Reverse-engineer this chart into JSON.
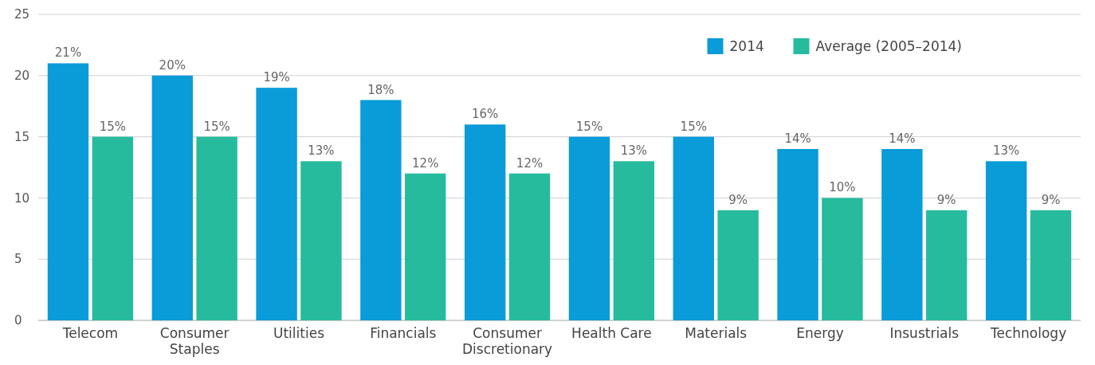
{
  "chart_data": {
    "type": "bar",
    "categories": [
      "Telecom",
      "Consumer Staples",
      "Utilities",
      "Financials",
      "Consumer Discretionary",
      "Health Care",
      "Materials",
      "Energy",
      "Insustrials",
      "Technology"
    ],
    "series": [
      {
        "name": "2014",
        "color": "#0a9bd9",
        "values": [
          21,
          20,
          19,
          18,
          16,
          15,
          15,
          14,
          14,
          13
        ],
        "value_labels": [
          "21%",
          "20%",
          "19%",
          "18%",
          "16%",
          "15%",
          "15%",
          "14%",
          "14%",
          "13%"
        ]
      },
      {
        "name": "Average (2005–2014)",
        "color": "#26bb9d",
        "values": [
          15,
          15,
          13,
          12,
          12,
          13,
          9,
          10,
          9,
          9
        ],
        "value_labels": [
          "15%",
          "15%",
          "13%",
          "12%",
          "12%",
          "13%",
          "9%",
          "10%",
          "9%",
          "9%"
        ]
      }
    ],
    "ylim": [
      0,
      25
    ],
    "yticks": [
      0,
      5,
      10,
      15,
      20,
      25
    ],
    "grid": "y",
    "legend": "top right"
  }
}
